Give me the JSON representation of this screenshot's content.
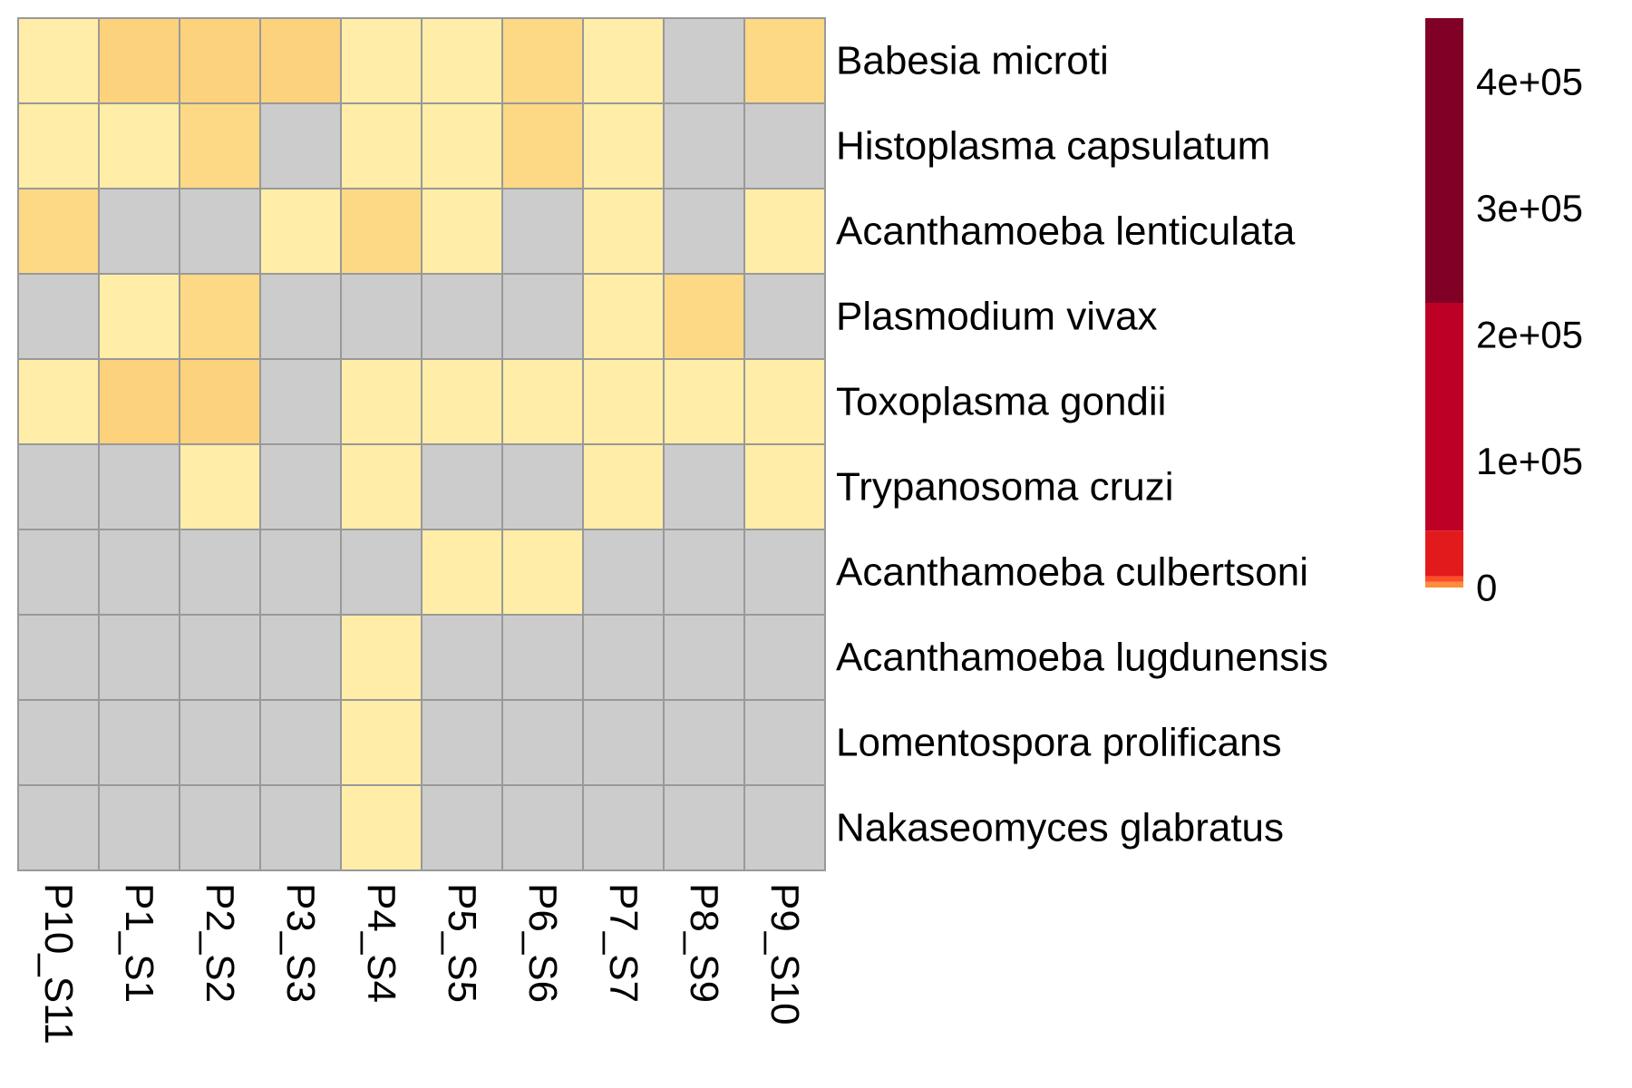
{
  "chart_data": {
    "type": "heatmap",
    "columns": [
      "P10_S11",
      "P1_S1",
      "P2_S2",
      "P3_S3",
      "P4_S4",
      "P5_S5",
      "P6_S6",
      "P7_S7",
      "P8_S9",
      "P9_S10"
    ],
    "rows": [
      "Babesia microti",
      "Histoplasma capsulatum",
      "Acanthamoeba lenticulata",
      "Plasmodium vivax",
      "Toxoplasma gondii",
      "Trypanosoma cruzi",
      "Acanthamoeba culbertsoni",
      "Acanthamoeba lugdunensis",
      "Lomentospora prolificans",
      "Nakaseomyces glabratus"
    ],
    "values": [
      [
        1,
        3,
        3,
        3,
        1,
        1,
        2,
        1,
        null,
        2
      ],
      [
        1,
        1,
        2,
        null,
        1,
        1,
        2,
        1,
        null,
        null
      ],
      [
        2,
        null,
        null,
        1,
        2,
        1,
        null,
        1,
        null,
        1
      ],
      [
        null,
        1,
        2,
        null,
        null,
        null,
        null,
        1,
        2,
        null
      ],
      [
        1,
        3,
        3,
        null,
        1,
        1,
        1,
        1,
        1,
        1
      ],
      [
        null,
        null,
        1,
        null,
        1,
        null,
        null,
        1,
        null,
        1
      ],
      [
        null,
        null,
        null,
        null,
        null,
        1,
        1,
        null,
        null,
        null
      ],
      [
        null,
        null,
        null,
        null,
        1,
        null,
        null,
        null,
        null,
        null
      ],
      [
        null,
        null,
        null,
        null,
        1,
        null,
        null,
        null,
        null,
        null
      ],
      [
        null,
        null,
        null,
        null,
        1,
        null,
        null,
        null,
        null,
        null
      ]
    ],
    "value_colors": {
      "1": "#FFEDA8",
      "2": "#FED985",
      "3": "#FDD27C"
    },
    "missing_color": "#CCCCCC",
    "grid_color": "#999999",
    "legend": {
      "position": "right",
      "ticks": [
        "4e+05",
        "3e+05",
        "2e+05",
        "1e+05",
        "0"
      ],
      "tick_values": [
        400000,
        300000,
        200000,
        100000,
        0
      ],
      "range": [
        0,
        450000
      ],
      "bands": [
        {
          "from": 0,
          "to": 4500,
          "color": "#FD8D3C"
        },
        {
          "from": 4500,
          "to": 9000,
          "color": "#FC4E2A"
        },
        {
          "from": 9000,
          "to": 45000,
          "color": "#E31A1C"
        },
        {
          "from": 45000,
          "to": 225000,
          "color": "#BD0026"
        },
        {
          "from": 225000,
          "to": 450000,
          "color": "#800026"
        }
      ]
    }
  }
}
